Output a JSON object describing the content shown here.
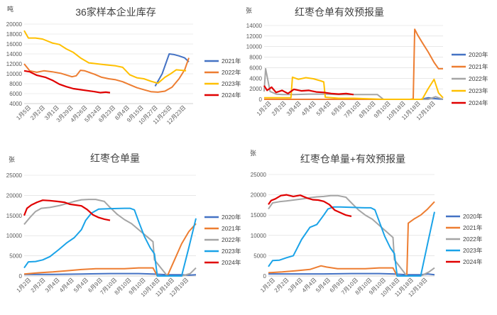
{
  "chart_data": [
    {
      "type": "line",
      "title": "36家样本企业库存",
      "unit": "吨",
      "ylim": [
        4000,
        20000
      ],
      "yticks": [
        4000,
        6000,
        8000,
        10000,
        12000,
        14000,
        16000,
        18000,
        20000
      ],
      "xlim": [
        0,
        12
      ],
      "categories": [
        "1月5日",
        "2月2日",
        "3月1日",
        "3月29日",
        "4月26日",
        "5月24日",
        "6月23日",
        "8月4日",
        "9月15日",
        "10月27日",
        "11月25日",
        "12月23日"
      ],
      "legend": "right",
      "series": [
        {
          "name": "2021年",
          "color": "#4472c4",
          "x": [
            9.3,
            9.8,
            10.3,
            10.6,
            11.0,
            11.4,
            11.7
          ],
          "values": [
            7500,
            10000,
            14000,
            13900,
            13600,
            13200,
            12400
          ]
        },
        {
          "name": "2022年",
          "color": "#ed7d31",
          "x": [
            0,
            0.4,
            0.9,
            1.4,
            2.0,
            2.6,
            3.4,
            3.7,
            4.0,
            4.3,
            5.0,
            5.5,
            6.0,
            6.5,
            7.0,
            7.5,
            8.0,
            8.5,
            9.0,
            9.5,
            10.0,
            10.5,
            11.0,
            11.4,
            11.7
          ],
          "values": [
            12000,
            10600,
            10300,
            10600,
            10400,
            10100,
            9400,
            9600,
            10700,
            10600,
            9900,
            9300,
            9000,
            8800,
            8400,
            7800,
            7200,
            6800,
            6400,
            6300,
            6500,
            7300,
            9000,
            10800,
            13200
          ]
        },
        {
          "name": "2023年",
          "color": "#ffc000",
          "x": [
            0,
            0.3,
            0.8,
            1.3,
            2.0,
            2.5,
            3.0,
            3.5,
            4.0,
            4.6,
            5.2,
            5.8,
            6.5,
            7.0,
            7.5,
            8.0,
            8.5,
            9.0,
            9.5,
            10.0,
            10.4,
            10.8,
            11.2,
            11.5
          ],
          "values": [
            18700,
            17200,
            17200,
            17000,
            16200,
            15900,
            15000,
            14300,
            13200,
            12200,
            12000,
            11800,
            11600,
            11300,
            9800,
            9200,
            9000,
            8500,
            8100,
            9300,
            10000,
            10800,
            10700,
            10600
          ]
        },
        {
          "name": "2024年",
          "color": "#e00000",
          "x": [
            0,
            0.4,
            0.9,
            1.5,
            2.0,
            2.5,
            3.0,
            3.5,
            4.0,
            4.5,
            5.0,
            5.4,
            5.8,
            6.1
          ],
          "values": [
            10600,
            10400,
            9700,
            9300,
            8700,
            7900,
            7400,
            7000,
            6800,
            6600,
            6400,
            6200,
            6300,
            6200
          ]
        }
      ]
    },
    {
      "type": "line",
      "title": "红枣仓单有效预报量",
      "unit": "张",
      "ylim": [
        0,
        14000
      ],
      "yticks": [
        0,
        2000,
        4000,
        6000,
        8000,
        10000,
        12000,
        14000
      ],
      "xlim": [
        0,
        12
      ],
      "categories": [
        "1月2日",
        "2月2日",
        "3月4日",
        "4月4日",
        "5月4日",
        "6月9日",
        "7月10日",
        "8月10日",
        "9月10日",
        "10月18日",
        "11月18日",
        "12月19日"
      ],
      "legend": "right",
      "series": [
        {
          "name": "2020年",
          "color": "#4472c4",
          "x": [
            0,
            2,
            4,
            6,
            8,
            10,
            10.5,
            11,
            11.3,
            11.6,
            12
          ],
          "values": [
            0,
            0,
            0,
            0,
            0,
            0,
            0,
            300,
            200,
            100,
            0
          ]
        },
        {
          "name": "2021年",
          "color": "#ed7d31",
          "x": [
            0,
            3,
            6,
            9,
            9.8,
            10.0,
            10.1,
            10.3,
            10.6,
            11.0,
            11.4,
            11.7,
            12
          ],
          "values": [
            0,
            0,
            0,
            0,
            0,
            100,
            13300,
            12200,
            10800,
            9000,
            7000,
            5800,
            5800
          ]
        },
        {
          "name": "2022年",
          "color": "#a5a5a5",
          "x": [
            0,
            0.1,
            0.4,
            0.8,
            1.2,
            2.0,
            3.0,
            4.0,
            5.0,
            6.0,
            7.0,
            7.6,
            8.0,
            10.0,
            11.0,
            11.5,
            12
          ],
          "values": [
            1500,
            5800,
            1500,
            1000,
            900,
            900,
            1000,
            1000,
            900,
            900,
            900,
            900,
            0,
            0,
            0,
            500,
            0
          ]
        },
        {
          "name": "2023年",
          "color": "#ffc000",
          "x": [
            0,
            1.0,
            1.8,
            1.9,
            2.3,
            2.8,
            3.3,
            3.8,
            4.0,
            4.1,
            5.0,
            6.0,
            8.0,
            10.0,
            10.6,
            11.0,
            11.4,
            11.7,
            12
          ],
          "values": [
            300,
            300,
            300,
            4200,
            3800,
            4100,
            3900,
            3500,
            3300,
            400,
            200,
            200,
            0,
            0,
            0,
            2000,
            3800,
            1200,
            300
          ]
        },
        {
          "name": "2024年",
          "color": "#e00000",
          "x": [
            0,
            0.2,
            0.5,
            0.8,
            1.2,
            1.6,
            2.0,
            2.5,
            3.0,
            3.5,
            4.0,
            4.5,
            5.0,
            5.5,
            6.0
          ],
          "values": [
            2600,
            1700,
            2300,
            1300,
            1700,
            1100,
            1900,
            1600,
            1700,
            1400,
            1300,
            1100,
            1000,
            1100,
            900
          ]
        }
      ]
    },
    {
      "type": "line",
      "title": "红枣仓单量",
      "unit": "张",
      "ylim": [
        0,
        25000
      ],
      "yticks": [
        0,
        5000,
        10000,
        15000,
        20000,
        25000
      ],
      "xlim": [
        0,
        12
      ],
      "categories": [
        "1月2日",
        "2月2日",
        "3月4日",
        "4月4日",
        "5月4日",
        "6月9日",
        "7月10日",
        "8月10日",
        "9月10日",
        "10月18日",
        "11月18日",
        "12月19日"
      ],
      "legend": "right",
      "series": [
        {
          "name": "2020年",
          "color": "#4472c4",
          "x": [
            0,
            2,
            4,
            6,
            8,
            9.0,
            10.0,
            11.0,
            11.5,
            12
          ],
          "values": [
            400,
            400,
            500,
            600,
            600,
            500,
            300,
            300,
            200,
            300
          ]
        },
        {
          "name": "2021年",
          "color": "#ed7d31",
          "x": [
            0,
            1.0,
            2.0,
            3.0,
            4.0,
            5.0,
            6.0,
            7.0,
            8.0,
            9.0,
            9.3,
            9.5,
            10.0,
            10.5,
            11.0,
            11.5,
            12
          ],
          "values": [
            500,
            800,
            1000,
            1300,
            1600,
            1800,
            1800,
            1800,
            2000,
            2000,
            0,
            0,
            0,
            4000,
            8000,
            11000,
            13000
          ]
        },
        {
          "name": "2022年",
          "color": "#a5a5a5",
          "x": [
            0,
            0.4,
            0.8,
            1.2,
            1.8,
            2.5,
            3.0,
            3.5,
            4.0,
            4.5,
            5.0,
            5.6,
            6.0,
            6.5,
            7.0,
            7.5,
            8.0,
            8.5,
            9.0,
            9.1,
            10.0,
            11.0,
            11.6,
            12
          ],
          "values": [
            12800,
            14500,
            16000,
            16800,
            17000,
            17500,
            18000,
            18500,
            18900,
            19000,
            19000,
            18500,
            17000,
            15300,
            14000,
            13000,
            11500,
            10000,
            8500,
            4000,
            0,
            0,
            600,
            2000
          ]
        },
        {
          "name": "2023年",
          "color": "#1aa3e8",
          "x": [
            0,
            0.3,
            0.8,
            1.3,
            1.8,
            2.4,
            3.0,
            3.5,
            4.0,
            4.3,
            4.7,
            5.2,
            6.0,
            7.0,
            7.4,
            7.7,
            8.0,
            8.4,
            8.8,
            9.1,
            9.3,
            10.0,
            11.0,
            11.5,
            12
          ],
          "values": [
            2000,
            3500,
            3600,
            4000,
            4800,
            6500,
            8300,
            9500,
            11500,
            13800,
            15600,
            16600,
            16700,
            16800,
            16800,
            16400,
            13500,
            9800,
            7000,
            5500,
            0,
            0,
            0,
            7000,
            14300
          ]
        },
        {
          "name": "2024年",
          "color": "#e00000",
          "x": [
            0,
            0.2,
            0.5,
            0.9,
            1.3,
            1.8,
            2.3,
            2.8,
            3.2,
            3.6,
            4.0,
            4.4,
            4.8,
            5.2,
            5.6,
            6.0
          ],
          "values": [
            15000,
            16800,
            17600,
            18300,
            18800,
            18700,
            18500,
            18300,
            17800,
            17600,
            17400,
            16500,
            15200,
            14500,
            14100,
            13800
          ]
        }
      ]
    },
    {
      "type": "line",
      "title": "红枣仓单量+有效预报量",
      "unit": "张",
      "ylim": [
        0,
        25000
      ],
      "yticks": [
        0,
        5000,
        10000,
        15000,
        20000,
        25000
      ],
      "xlim": [
        0,
        12
      ],
      "categories": [
        "1月2日",
        "2月2日",
        "3月4日",
        "4月4日",
        "5月4日",
        "6月9日",
        "7月10日",
        "8月10日",
        "9月10日",
        "10月18日",
        "11月18日",
        "12月19日"
      ],
      "legend": "right",
      "series": [
        {
          "name": "2020年",
          "color": "#4472c4",
          "x": [
            0,
            2,
            4,
            6,
            8,
            9.0,
            10.0,
            11.0,
            11.5,
            12
          ],
          "values": [
            500,
            500,
            500,
            600,
            600,
            500,
            300,
            300,
            500,
            300
          ]
        },
        {
          "name": "2021年",
          "color": "#ed7d31",
          "x": [
            0,
            1.0,
            2.0,
            3.0,
            3.8,
            4.2,
            5.0,
            6.0,
            7.0,
            8.0,
            9.0,
            9.3,
            9.5,
            10.0,
            10.1,
            10.5,
            11.0,
            11.5,
            12
          ],
          "values": [
            800,
            1000,
            1300,
            1600,
            2500,
            2200,
            1800,
            1800,
            1800,
            2000,
            2000,
            0,
            0,
            0,
            13000,
            14000,
            15000,
            16500,
            18300
          ]
        },
        {
          "name": "2022年",
          "color": "#a5a5a5",
          "x": [
            0,
            0.3,
            0.8,
            1.3,
            1.8,
            2.5,
            3.0,
            3.5,
            4.0,
            4.5,
            5.0,
            5.6,
            6.0,
            6.5,
            7.0,
            7.5,
            8.0,
            8.5,
            9.0,
            9.1,
            10.0,
            11.0,
            11.6,
            12
          ],
          "values": [
            16500,
            18000,
            18300,
            18500,
            18700,
            19000,
            19300,
            19500,
            19600,
            19800,
            19800,
            19400,
            18000,
            16300,
            15000,
            14000,
            12500,
            11000,
            9500,
            4000,
            0,
            0,
            1000,
            2000
          ]
        },
        {
          "name": "2023年",
          "color": "#1aa3e8",
          "x": [
            0,
            0.3,
            0.8,
            1.3,
            1.8,
            2.4,
            3.0,
            3.5,
            4.0,
            4.3,
            4.7,
            5.2,
            6.0,
            7.0,
            7.4,
            7.7,
            8.0,
            8.4,
            8.8,
            9.1,
            9.3,
            10.0,
            11.0,
            11.5,
            12
          ],
          "values": [
            2300,
            3800,
            3900,
            4500,
            5000,
            9000,
            12000,
            12700,
            15000,
            16500,
            17000,
            17000,
            16900,
            16800,
            16800,
            16300,
            13500,
            9800,
            7000,
            5500,
            0,
            0,
            0,
            8000,
            15800
          ]
        },
        {
          "name": "2024年",
          "color": "#e00000",
          "x": [
            0,
            0.2,
            0.5,
            0.9,
            1.3,
            1.8,
            2.3,
            2.8,
            3.2,
            3.6,
            4.0,
            4.4,
            4.8,
            5.2,
            5.6,
            6.0
          ],
          "values": [
            17600,
            18600,
            19000,
            19800,
            20000,
            19600,
            19900,
            19200,
            18800,
            18700,
            18400,
            17600,
            16200,
            15600,
            15000,
            14700
          ]
        }
      ]
    }
  ]
}
